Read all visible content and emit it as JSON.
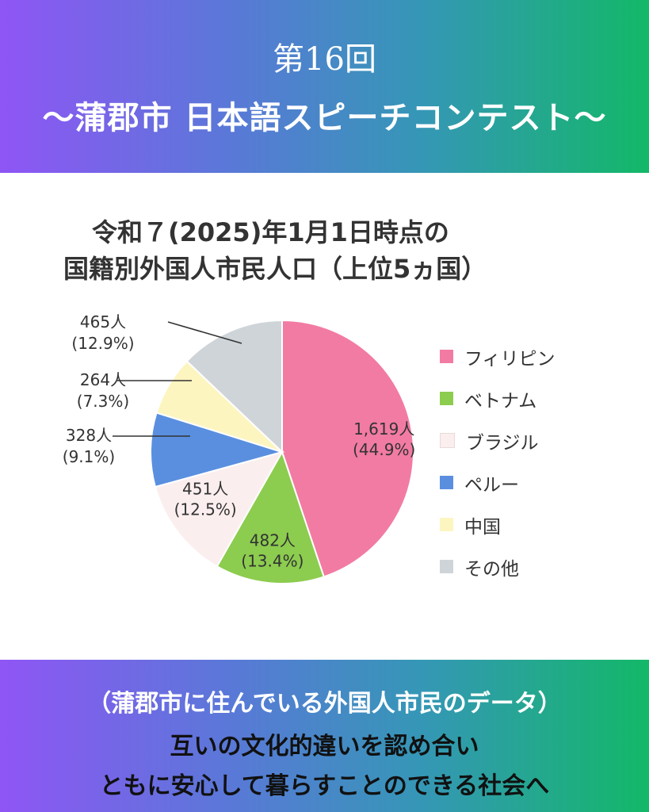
{
  "header": {
    "subtitle": "第16回",
    "title": "～蒲郡市 日本語スピーチコンテスト～"
  },
  "chart_data": {
    "type": "pie",
    "title_line1": "令和７(2025)年1月1日時点の",
    "title_line2": "国籍別外国人市民人口（上位5ヵ国）",
    "slices": [
      {
        "name": "フィリピン",
        "count": "1,619人",
        "percent": "(44.9%)",
        "value": 44.9,
        "color": "#f27ba3"
      },
      {
        "name": "ベトナム",
        "count": "482人",
        "percent": "(13.4%)",
        "value": 13.4,
        "color": "#8ccc4f"
      },
      {
        "name": "ブラジル",
        "count": "451人",
        "percent": "(12.5%)",
        "value": 12.5,
        "color": "#fbeeee"
      },
      {
        "name": "ペルー",
        "count": "328人",
        "percent": "(9.1%)",
        "value": 9.1,
        "color": "#5a8fe0"
      },
      {
        "name": "中国",
        "count": "264人",
        "percent": "(7.3%)",
        "value": 7.3,
        "color": "#fdf5c0"
      },
      {
        "name": "その他",
        "count": "465人",
        "percent": "(12.9%)",
        "value": 12.9,
        "color": "#cfd4d9"
      }
    ],
    "legend_placement": "right"
  },
  "footer": {
    "line1": "（蒲郡市に住んでいる外国人市民のデータ）",
    "line2": "互いの文化的違いを認め合い",
    "line3": "ともに安心して暮らすことのできる社会へ"
  }
}
